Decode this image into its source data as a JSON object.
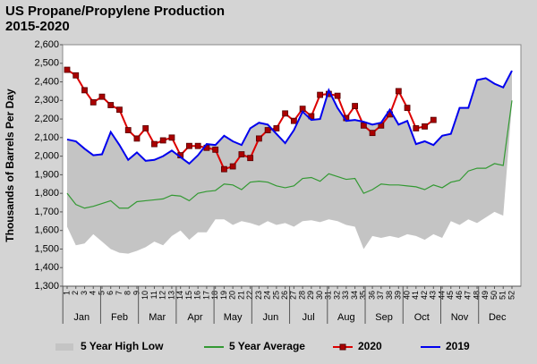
{
  "chart_data": {
    "type": "line",
    "title": "US Propane/Propylene Production",
    "subtitle": "2015-2020",
    "y_label": "Thousands of Barrels Per Day",
    "categories": [
      1,
      2,
      3,
      4,
      5,
      6,
      7,
      8,
      9,
      10,
      11,
      12,
      13,
      14,
      15,
      16,
      17,
      18,
      19,
      20,
      21,
      22,
      23,
      24,
      25,
      26,
      27,
      28,
      29,
      30,
      31,
      32,
      33,
      34,
      35,
      36,
      37,
      38,
      39,
      40,
      41,
      42,
      43,
      44,
      45,
      46,
      47,
      48,
      49,
      50,
      51,
      52
    ],
    "months": [
      "Jan",
      "Feb",
      "Mar",
      "Apr",
      "May",
      "Jun",
      "Jul",
      "Aug",
      "Sep",
      "Oct",
      "Nov",
      "Dec"
    ],
    "ylim": [
      1300,
      2600
    ],
    "yticks": [
      {
        "value": 1300,
        "label": "1,300"
      },
      {
        "value": 1400,
        "label": "1,400"
      },
      {
        "value": 1500,
        "label": "1,500"
      },
      {
        "value": 1600,
        "label": "1,600"
      },
      {
        "value": 1700,
        "label": "1,700"
      },
      {
        "value": 1800,
        "label": "1,800"
      },
      {
        "value": 1900,
        "label": "1,900"
      },
      {
        "value": 2000,
        "label": "2,000"
      },
      {
        "value": 2100,
        "label": "2,100"
      },
      {
        "value": 2200,
        "label": "2,200"
      },
      {
        "value": 2300,
        "label": "2,300"
      },
      {
        "value": 2400,
        "label": "2,400"
      },
      {
        "value": 2500,
        "label": "2,500"
      },
      {
        "value": 2600,
        "label": "2,600"
      }
    ],
    "grid": false,
    "legend": "bottom",
    "series": [
      {
        "name": "5 Year High Low",
        "type": "range",
        "color": "#c4c4c4",
        "high": [
          2085,
          2075,
          2040,
          2005,
          2010,
          2125,
          2060,
          1985,
          2020,
          1980,
          1985,
          2000,
          2030,
          1995,
          1965,
          2005,
          2065,
          2060,
          2110,
          2080,
          2065,
          2150,
          2180,
          2175,
          2125,
          2075,
          2140,
          2240,
          2200,
          2205,
          2355,
          2260,
          2195,
          2200,
          2190,
          2175,
          2185,
          2250,
          2175,
          2195,
          2070,
          2085,
          2065,
          2115,
          2125,
          2260,
          2265,
          2410,
          2420,
          2395,
          2375,
          2460
        ],
        "low": [
          1620,
          1520,
          1530,
          1580,
          1540,
          1500,
          1480,
          1475,
          1490,
          1510,
          1540,
          1520,
          1570,
          1600,
          1550,
          1590,
          1590,
          1660,
          1660,
          1630,
          1650,
          1640,
          1625,
          1650,
          1630,
          1640,
          1620,
          1650,
          1655,
          1645,
          1660,
          1650,
          1630,
          1620,
          1500,
          1570,
          1560,
          1570,
          1560,
          1580,
          1570,
          1550,
          1580,
          1560,
          1650,
          1630,
          1660,
          1640,
          1670,
          1700,
          1680,
          2280
        ]
      },
      {
        "name": "5 Year Average",
        "type": "line",
        "color": "#339933",
        "values": [
          1800,
          1740,
          1720,
          1730,
          1745,
          1760,
          1720,
          1720,
          1755,
          1760,
          1765,
          1770,
          1790,
          1785,
          1760,
          1800,
          1810,
          1815,
          1850,
          1845,
          1820,
          1860,
          1865,
          1860,
          1840,
          1830,
          1840,
          1880,
          1885,
          1865,
          1905,
          1890,
          1875,
          1880,
          1800,
          1820,
          1850,
          1845,
          1845,
          1840,
          1835,
          1820,
          1845,
          1830,
          1860,
          1870,
          1920,
          1935,
          1935,
          1960,
          1950,
          2300
        ]
      },
      {
        "name": "2020",
        "type": "line",
        "color": "#dd0000",
        "marker": "square",
        "values": [
          2465,
          2435,
          2355,
          2290,
          2320,
          2275,
          2250,
          2140,
          2095,
          2150,
          2065,
          2085,
          2100,
          2005,
          2055,
          2055,
          2045,
          2035,
          1930,
          1945,
          2010,
          1990,
          2095,
          2140,
          2150,
          2230,
          2190,
          2255,
          2215,
          2330,
          2335,
          2325,
          2205,
          2270,
          2165,
          2125,
          2165,
          2225,
          2350,
          2260,
          2150,
          2160,
          2195,
          null,
          null,
          null,
          null,
          null,
          null,
          null,
          null,
          null
        ]
      },
      {
        "name": "2019",
        "type": "line",
        "color": "#0000ee",
        "values": [
          2090,
          2080,
          2040,
          2005,
          2010,
          2130,
          2060,
          1980,
          2020,
          1975,
          1980,
          2000,
          2030,
          1995,
          1960,
          2005,
          2065,
          2060,
          2110,
          2080,
          2060,
          2150,
          2180,
          2170,
          2120,
          2070,
          2140,
          2240,
          2195,
          2200,
          2355,
          2260,
          2190,
          2195,
          2185,
          2170,
          2180,
          2250,
          2170,
          2190,
          2065,
          2080,
          2060,
          2110,
          2120,
          2260,
          2260,
          2410,
          2420,
          2390,
          2370,
          2460
        ]
      }
    ]
  }
}
